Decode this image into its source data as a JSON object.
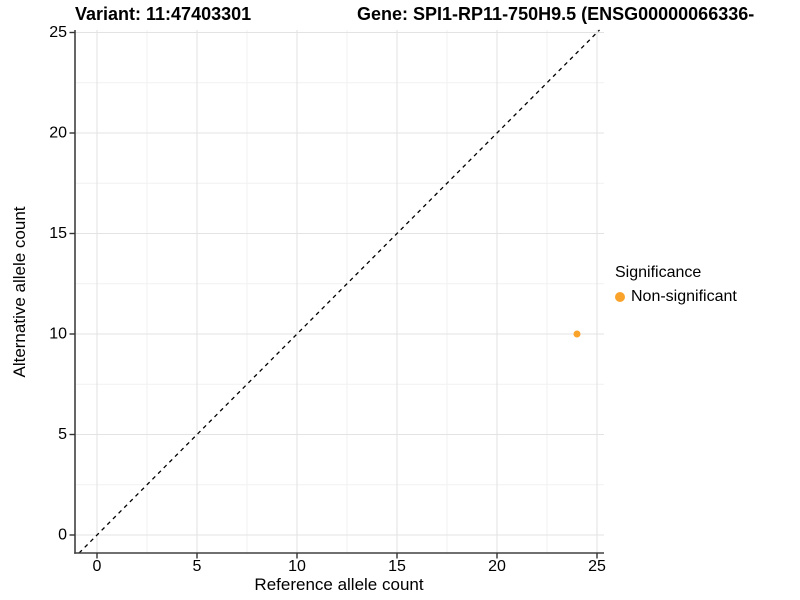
{
  "chart_data": {
    "type": "scatter",
    "title_left": "Variant: 11:47403301",
    "title_right": "Gene: SPI1-RP11-750H9.5 (ENSG00000066336-",
    "xlabel": "Reference allele count",
    "ylabel": "Alternative allele count",
    "xlim": [
      0,
      25
    ],
    "ylim": [
      0,
      25
    ],
    "xticks": [
      0,
      5,
      10,
      15,
      20,
      25
    ],
    "yticks": [
      0,
      5,
      10,
      15,
      20,
      25
    ],
    "grid": "major-and-minor",
    "identity_line": {
      "type": "y=x",
      "style": "dashed",
      "color": "#000000"
    },
    "series": [
      {
        "name": "Non-significant",
        "color": "#F9A32B",
        "points": [
          {
            "x": 24,
            "y": 10
          }
        ]
      }
    ],
    "legend": {
      "title": "Significance",
      "position": "right",
      "entries": [
        {
          "label": "Non-significant",
          "color": "#F9A32B"
        }
      ]
    }
  }
}
